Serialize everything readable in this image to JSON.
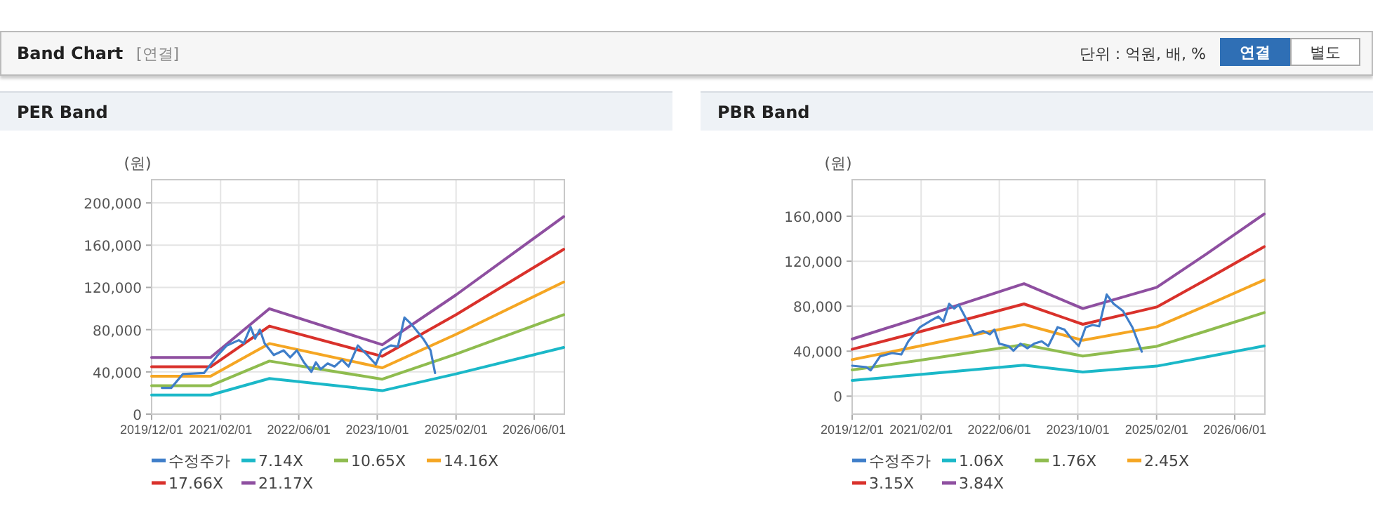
{
  "chart_data": [
    {
      "type": "other",
      "title": "Band Chart",
      "annotations": [
        "[연결]",
        "단위 : 억원, 배, %",
        "연결",
        "별도"
      ]
    },
    {
      "type": "line",
      "title": "PER Band",
      "ylabel": "(원)",
      "grid": true,
      "legend": "bottom",
      "xlim": [
        "2019-12-01",
        "2026-12-05"
      ],
      "xticks": [
        {
          "value": "2019-12-01",
          "label": "2019/12/01"
        },
        {
          "value": "2021-02-01",
          "label": "2021/02/01"
        },
        {
          "value": "2022-06-01",
          "label": "2022/06/01"
        },
        {
          "value": "2023-10-01",
          "label": "2023/10/01"
        },
        {
          "value": "2025-02-01",
          "label": "2025/02/01"
        },
        {
          "value": "2026-06-01",
          "label": "2026/06/01"
        }
      ],
      "ylim": [
        0,
        222000
      ],
      "yticks": [
        0,
        {
          "value": 40000,
          "label": "40,000"
        },
        {
          "value": 80000,
          "label": "80,000"
        },
        {
          "value": 120000,
          "label": "120,000"
        },
        {
          "value": 160000,
          "label": "160,000"
        },
        {
          "value": 200000,
          "label": "200,000"
        }
      ],
      "series": [
        {
          "name": "수정주가",
          "color": "#3f7ec9",
          "x": [
            "2020-02-03",
            "2020-04-01",
            "2020-06-12",
            "2020-10-21",
            "2021-01-15",
            "2021-03-12",
            "2021-05-25",
            "2021-06-24",
            "2021-08-06",
            "2021-09-03",
            "2021-10-03",
            "2021-11-01",
            "2021-12-28",
            "2022-02-27",
            "2022-04-09",
            "2022-05-21",
            "2022-07-03",
            "2022-08-18",
            "2022-09-15",
            "2022-10-15",
            "2022-11-27",
            "2023-01-09",
            "2023-02-24",
            "2023-04-06",
            "2023-06-03",
            "2023-08-01",
            "2023-09-22",
            "2023-10-27",
            "2023-12-24",
            "2024-02-06",
            "2024-03-18",
            "2024-05-01",
            "2024-07-12",
            "2024-08-27",
            "2024-09-24"
          ],
          "values": [
            24900,
            24900,
            38000,
            39000,
            56000,
            65000,
            70000,
            67000,
            82600,
            71500,
            80000,
            67000,
            56000,
            60400,
            53700,
            60400,
            49000,
            40000,
            49000,
            42600,
            48000,
            45000,
            51500,
            45000,
            65000,
            56000,
            47000,
            60400,
            65000,
            64000,
            91500,
            85000,
            71500,
            60400,
            39000
          ]
        },
        {
          "name": "7.14X",
          "color": "#1bb8c8",
          "x": [
            "2019-12-01",
            "2020-12-01",
            "2021-12-01",
            "2023-11-01",
            "2025-02-01",
            "2026-12-01"
          ],
          "values": [
            18100,
            18100,
            33700,
            22200,
            38100,
            63100
          ]
        },
        {
          "name": "10.65X",
          "color": "#8fbc4f",
          "x": [
            "2019-12-01",
            "2020-12-01",
            "2021-12-01",
            "2023-11-01",
            "2025-02-01",
            "2026-12-01"
          ],
          "values": [
            27000,
            27000,
            50200,
            33100,
            56900,
            94100
          ]
        },
        {
          "name": "14.16X",
          "color": "#f5a623",
          "x": [
            "2019-12-01",
            "2020-12-01",
            "2021-12-01",
            "2023-11-01",
            "2025-02-01",
            "2026-12-01"
          ],
          "values": [
            35900,
            35900,
            66800,
            43900,
            75600,
            125100
          ]
        },
        {
          "name": "17.66X",
          "color": "#d9312b",
          "x": [
            "2019-12-01",
            "2020-12-01",
            "2021-12-01",
            "2023-11-01",
            "2025-02-01",
            "2026-12-01"
          ],
          "values": [
            44800,
            44800,
            83300,
            54800,
            94300,
            156000
          ]
        },
        {
          "name": "21.17X",
          "color": "#8e4fa0",
          "x": [
            "2019-12-01",
            "2020-12-01",
            "2021-12-01",
            "2023-11-01",
            "2025-02-01",
            "2026-12-01"
          ],
          "values": [
            53700,
            53700,
            99800,
            65700,
            113000,
            187000
          ]
        }
      ]
    },
    {
      "type": "line",
      "title": "PBR Band",
      "ylabel": "(원)",
      "grid": true,
      "legend": "bottom",
      "xlim": [
        "2019-12-01",
        "2026-12-05"
      ],
      "xticks": [
        {
          "value": "2019-12-01",
          "label": "2019/12/01"
        },
        {
          "value": "2021-02-01",
          "label": "2021/02/01"
        },
        {
          "value": "2022-06-01",
          "label": "2022/06/01"
        },
        {
          "value": "2023-10-01",
          "label": "2023/10/01"
        },
        {
          "value": "2025-02-01",
          "label": "2025/02/01"
        },
        {
          "value": "2026-06-01",
          "label": "2026/06/01"
        }
      ],
      "ylim": [
        -16000,
        192500
      ],
      "yticks": [
        0,
        {
          "value": 40000,
          "label": "40,000"
        },
        {
          "value": 80000,
          "label": "80,000"
        },
        {
          "value": 120000,
          "label": "120,000"
        },
        {
          "value": 160000,
          "label": "160,000"
        }
      ],
      "series": [
        {
          "name": "수정주가",
          "color": "#3f7ec9",
          "x": [
            "2019-12-01",
            "2020-02-27",
            "2020-03-25",
            "2020-05-22",
            "2020-08-04",
            "2020-10-01",
            "2020-11-13",
            "2021-01-25",
            "2021-04-07",
            "2021-05-19",
            "2021-06-19",
            "2021-07-25",
            "2021-08-25",
            "2021-09-22",
            "2021-10-28",
            "2021-12-25",
            "2022-02-22",
            "2022-04-04",
            "2022-05-01",
            "2022-06-01",
            "2022-07-28",
            "2022-08-28",
            "2022-10-10",
            "2022-11-22",
            "2023-01-04",
            "2023-02-19",
            "2023-04-01",
            "2023-05-28",
            "2023-07-10",
            "2023-08-25",
            "2023-10-07",
            "2023-11-19",
            "2024-01-01",
            "2024-02-10",
            "2024-03-28",
            "2024-05-10",
            "2024-07-07",
            "2024-09-04",
            "2024-11-01"
          ],
          "values": [
            27100,
            25800,
            22900,
            35400,
            38300,
            37100,
            48800,
            61300,
            67500,
            70800,
            66300,
            82100,
            77900,
            81300,
            71700,
            55000,
            57900,
            55000,
            59200,
            46700,
            44600,
            40400,
            46700,
            42500,
            46700,
            48800,
            44600,
            61300,
            59200,
            50800,
            44600,
            61300,
            63300,
            62100,
            90400,
            82100,
            75800,
            61300,
            39600
          ]
        },
        {
          "name": "1.06X",
          "color": "#1bb8c8",
          "x": [
            "2019-12-01",
            "2021-01-01",
            "2022-11-01",
            "2023-11-01",
            "2025-02-01",
            "2025-12-01",
            "2026-12-01"
          ],
          "values": [
            14000,
            19000,
            27600,
            21500,
            26700,
            34700,
            44700
          ]
        },
        {
          "name": "1.76X",
          "color": "#8fbc4f",
          "x": [
            "2019-12-01",
            "2021-01-01",
            "2022-11-01",
            "2023-11-01",
            "2025-02-01",
            "2025-12-01",
            "2026-12-01"
          ],
          "values": [
            23300,
            31500,
            45800,
            35700,
            44300,
            57700,
            74300
          ]
        },
        {
          "name": "2.45X",
          "color": "#f5a623",
          "x": [
            "2019-12-01",
            "2021-01-01",
            "2022-11-01",
            "2023-11-01",
            "2025-02-01",
            "2025-12-01",
            "2026-12-01"
          ],
          "values": [
            32400,
            43900,
            63800,
            49700,
            61700,
            80300,
            103400
          ]
        },
        {
          "name": "3.15X",
          "color": "#d9312b",
          "x": [
            "2019-12-01",
            "2021-01-01",
            "2022-11-01",
            "2023-11-01",
            "2025-02-01",
            "2025-12-01",
            "2026-12-01"
          ],
          "values": [
            41700,
            56400,
            82000,
            63900,
            79300,
            103200,
            132900
          ]
        },
        {
          "name": "3.84X",
          "color": "#8e4fa0",
          "x": [
            "2019-12-01",
            "2021-01-01",
            "2022-11-01",
            "2023-11-01",
            "2025-02-01",
            "2025-12-01",
            "2026-12-01"
          ],
          "values": [
            50800,
            68800,
            100000,
            77900,
            96700,
            125800,
            162000
          ]
        }
      ]
    }
  ]
}
